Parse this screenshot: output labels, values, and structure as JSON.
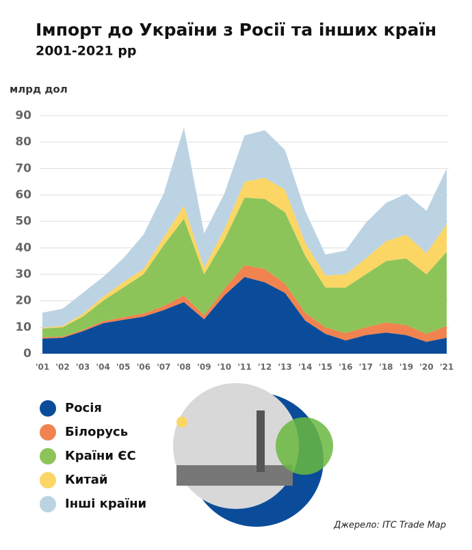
{
  "chart_data": {
    "type": "stacked-area",
    "title": "Імпорт до України з Росії та інших країн",
    "subtitle": "2001-2021 рр",
    "y_label": "млрд дол",
    "source": "Джерело: ITC Trade Map",
    "categories": [
      "'01",
      "'02",
      "'03",
      "'04",
      "'05",
      "'06",
      "'07",
      "'08",
      "'09",
      "'10",
      "'11",
      "'12",
      "'13",
      "'14",
      "'15",
      "'16",
      "'17",
      "'18",
      "'19",
      "'20",
      "'21"
    ],
    "series": [
      {
        "name": "Росія",
        "color": "#0b4c9a",
        "values": [
          5.7,
          6,
          8.5,
          11.5,
          12.8,
          14,
          16.5,
          19.5,
          13,
          22,
          29,
          27,
          23,
          12.5,
          7.5,
          5,
          7,
          8,
          7,
          4.5,
          6
        ]
      },
      {
        "name": "Білорусь",
        "color": "#f0834f",
        "values": [
          0.5,
          0.5,
          0.5,
          0.8,
          1,
          1.2,
          1.5,
          2.5,
          1.5,
          2.5,
          4.5,
          5,
          3.5,
          3,
          2.5,
          2.8,
          3,
          3.8,
          3.8,
          3,
          4.5
        ]
      },
      {
        "name": "Країни ЄС",
        "color": "#8dc45a",
        "values": [
          3.3,
          3.5,
          5,
          7.7,
          11.2,
          14.8,
          23,
          29,
          15.5,
          18.5,
          25.5,
          26.5,
          27,
          21.5,
          15,
          17.2,
          20,
          23.2,
          25.2,
          22.5,
          28
        ]
      },
      {
        "name": "Китай",
        "color": "#fbd664",
        "values": [
          0.3,
          0.5,
          1,
          1.5,
          2,
          2,
          3,
          5,
          2.5,
          4,
          6,
          8,
          8.5,
          5,
          4.5,
          5,
          6,
          7.5,
          9,
          8,
          10.5
        ]
      },
      {
        "name": "Інші країни",
        "color": "#bcd3e3",
        "values": [
          5.7,
          6.5,
          8,
          7.5,
          9,
          13,
          16.5,
          29.5,
          13,
          13.5,
          17.5,
          18,
          15,
          12,
          8,
          9,
          13.5,
          14.5,
          15.5,
          16,
          21
        ]
      }
    ],
    "ylim": [
      0,
      90
    ],
    "yticks": [
      0,
      10,
      20,
      30,
      40,
      50,
      60,
      70,
      80,
      90
    ],
    "grid": true
  }
}
